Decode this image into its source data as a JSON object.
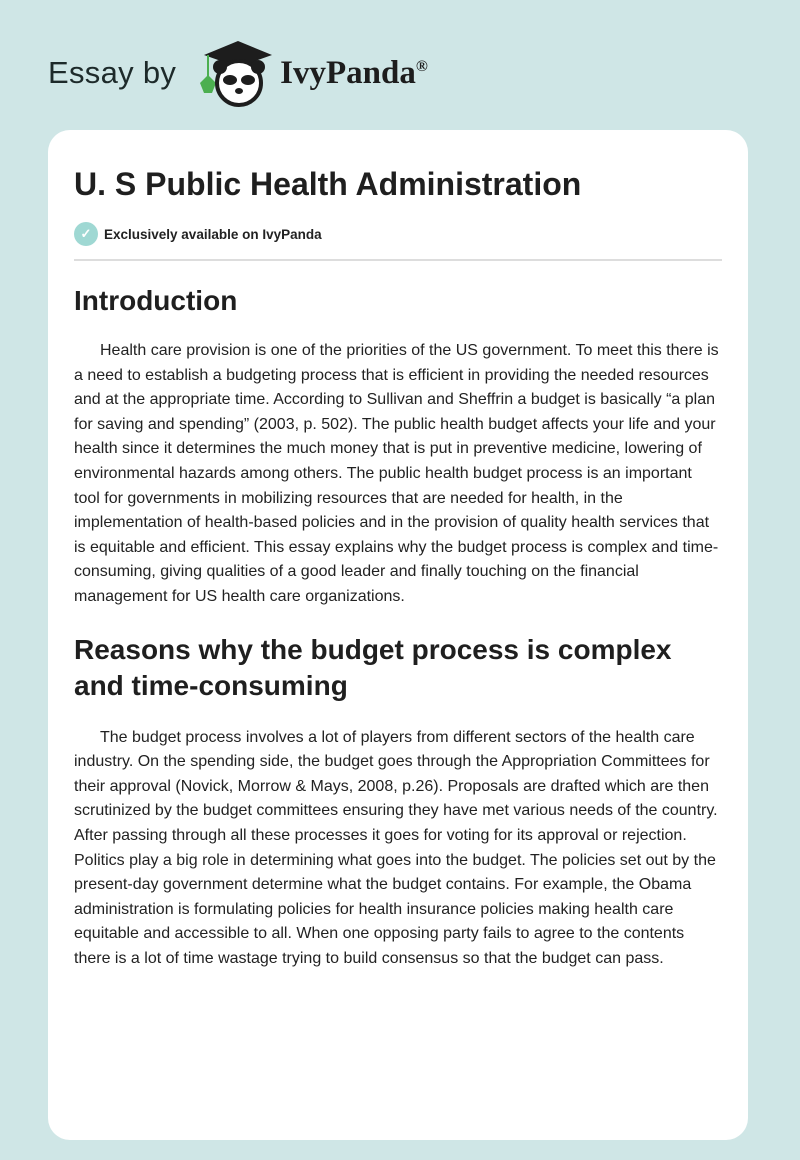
{
  "header": {
    "prefix": "Essay by",
    "brand": "IvyPanda",
    "registered": "®"
  },
  "article": {
    "title": "U. S Public Health Administration",
    "badge": "Exclusively available on IvyPanda",
    "sections": [
      {
        "heading": "Introduction",
        "body": "Health care provision is one of the priorities of the US government. To meet this there is a need to establish a budgeting process that is efficient in providing the needed resources and at the appropriate time. According to Sullivan and Sheffrin a budget is basically “a plan for saving and spending” (2003, p. 502). The public health budget affects your life and your health since it determines the much money that is put in preventive medicine, lowering of environmental hazards among others. The public health budget process is an important tool for governments in mobilizing resources that are needed for health, in the implementation of health-based policies and in the provision of quality health services that is equitable and efficient. This essay explains why the budget process is complex and time-consuming, giving qualities of a good leader and finally touching on the financial management for US health care organizations."
      },
      {
        "heading": "Reasons why the budget process is complex and time-consuming",
        "body": "The budget process involves a lot of players from different sectors of the health care industry. On the spending side, the budget goes through the Appropriation Committees for their approval (Novick, Morrow & Mays, 2008, p.26). Proposals are drafted which are then scrutinized by the budget committees ensuring they have met various needs of the country. After passing through all these processes it goes for voting for its approval or rejection. Politics play a big role in determining what goes into the budget. The policies set out by the present-day government determine what the budget contains. For example, the Obama administration is formulating policies for health insurance policies making health care equitable and accessible to all. When one opposing party fails to agree to the contents there is a lot of time wastage trying to build consensus so that the budget can pass."
      }
    ]
  },
  "colors": {
    "background": "#cfe6e6",
    "badge": "#9fd8d3",
    "ivy": "#4caf50"
  },
  "icons": {
    "badge": "check-circle-icon",
    "logo": "panda-graduate-icon"
  }
}
